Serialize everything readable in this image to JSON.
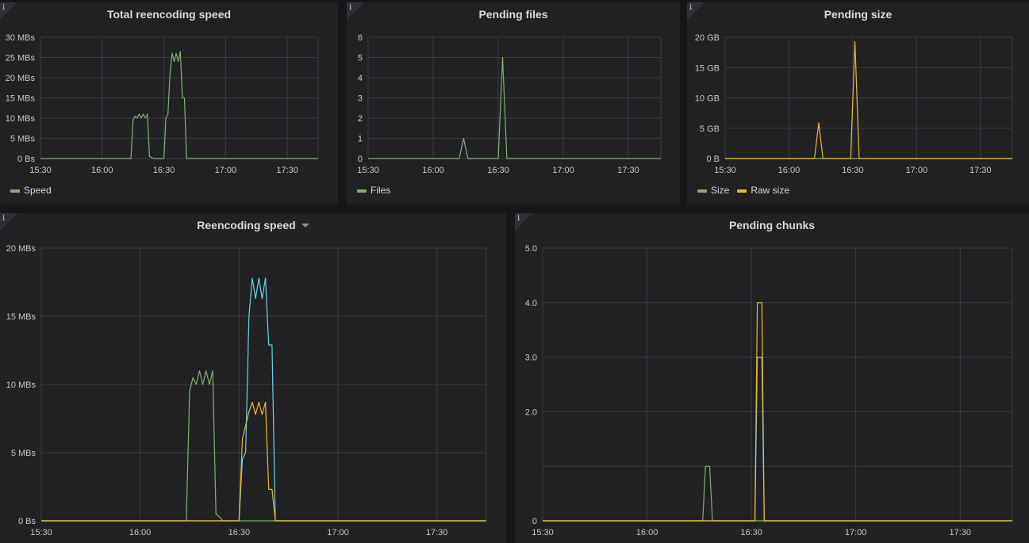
{
  "palette": {
    "green": "#7eb26d",
    "yellow": "#eab839",
    "blue": "#6ed0e0",
    "grid": "#3a3b40",
    "axis": "#c8c9ca"
  },
  "panels": {
    "p1": {
      "title": "Total reencoding speed",
      "info": "i",
      "legend": [
        {
          "name": "Speed",
          "color": "#7eb26d"
        }
      ]
    },
    "p2": {
      "title": "Pending files",
      "info": "i",
      "legend": [
        {
          "name": "Files",
          "color": "#7eb26d"
        }
      ]
    },
    "p3": {
      "title": "Pending size",
      "info": "i",
      "legend": [
        {
          "name": "Size",
          "color": "#7eb26d"
        },
        {
          "name": "Raw size",
          "color": "#eab839"
        }
      ]
    },
    "p4": {
      "title": "Reencoding speed",
      "info": "i",
      "legend": []
    },
    "p5": {
      "title": "Pending chunks",
      "info": "i",
      "legend": []
    }
  },
  "chart_data": [
    {
      "id": "p1",
      "type": "line",
      "title": "Total reencoding speed",
      "xlim": [
        0,
        135
      ],
      "xticks": [
        0,
        30,
        60,
        90,
        120
      ],
      "xtick_labels": [
        "15:30",
        "16:00",
        "16:30",
        "17:00",
        "17:30"
      ],
      "ylim": [
        0,
        30
      ],
      "yticks": [
        0,
        5,
        10,
        15,
        20,
        25,
        30
      ],
      "ytick_labels": [
        "0 Bs",
        "5 MBs",
        "10 MBs",
        "15 MBs",
        "20 MBs",
        "25 MBs",
        "30 MBs"
      ],
      "grid": true,
      "legend": "bottom-left",
      "series": [
        {
          "name": "Speed",
          "color": "#7eb26d",
          "points": [
            [
              0,
              0
            ],
            [
              44,
              0
            ],
            [
              45,
              9.5
            ],
            [
              46,
              10.5
            ],
            [
              47,
              10
            ],
            [
              48,
              11
            ],
            [
              49,
              10
            ],
            [
              50,
              11
            ],
            [
              51,
              10
            ],
            [
              52,
              11
            ],
            [
              53,
              0.5
            ],
            [
              54,
              0.3
            ],
            [
              55,
              0
            ],
            [
              60,
              0
            ],
            [
              61,
              10
            ],
            [
              62,
              11
            ],
            [
              63,
              21
            ],
            [
              64,
              26
            ],
            [
              65,
              24
            ],
            [
              66,
              26
            ],
            [
              67,
              24
            ],
            [
              68,
              26.5
            ],
            [
              69,
              15
            ],
            [
              70,
              15
            ],
            [
              71,
              0
            ],
            [
              135,
              0
            ]
          ]
        }
      ]
    },
    {
      "id": "p2",
      "type": "line",
      "title": "Pending files",
      "xlim": [
        0,
        135
      ],
      "xticks": [
        0,
        30,
        60,
        90,
        120
      ],
      "xtick_labels": [
        "15:30",
        "16:00",
        "16:30",
        "17:00",
        "17:30"
      ],
      "ylim": [
        0,
        6
      ],
      "yticks": [
        0,
        1,
        2,
        3,
        4,
        5,
        6
      ],
      "ytick_labels": [
        "0",
        "1",
        "2",
        "3",
        "4",
        "5",
        "6"
      ],
      "grid": true,
      "legend": "bottom-left",
      "series": [
        {
          "name": "Files",
          "color": "#7eb26d",
          "points": [
            [
              0,
              0
            ],
            [
              42,
              0
            ],
            [
              44,
              1
            ],
            [
              46,
              0
            ],
            [
              60,
              0
            ],
            [
              62,
              5
            ],
            [
              64,
              0
            ],
            [
              135,
              0
            ]
          ]
        }
      ]
    },
    {
      "id": "p3",
      "type": "line",
      "title": "Pending size",
      "xlim": [
        0,
        135
      ],
      "xticks": [
        0,
        30,
        60,
        90,
        120
      ],
      "xtick_labels": [
        "15:30",
        "16:00",
        "16:30",
        "17:00",
        "17:30"
      ],
      "ylim": [
        0,
        20
      ],
      "yticks": [
        0,
        5,
        10,
        15,
        20
      ],
      "ytick_labels": [
        "0 B",
        "5 GB",
        "10 GB",
        "15 GB",
        "20 GB"
      ],
      "grid": true,
      "legend": "bottom-left",
      "series": [
        {
          "name": "Size",
          "color": "#7eb26d",
          "points": [
            [
              0,
              0
            ],
            [
              135,
              0
            ]
          ]
        },
        {
          "name": "Raw size",
          "color": "#eab839",
          "points": [
            [
              0,
              0
            ],
            [
              42,
              0
            ],
            [
              44,
              5.9
            ],
            [
              46,
              0
            ],
            [
              59,
              0
            ],
            [
              61,
              19.3
            ],
            [
              63,
              0
            ],
            [
              135,
              0
            ]
          ]
        }
      ]
    },
    {
      "id": "p4",
      "type": "line",
      "title": "Reencoding speed",
      "xlim": [
        0,
        135
      ],
      "xticks": [
        0,
        30,
        60,
        90,
        120
      ],
      "xtick_labels": [
        "15:30",
        "16:00",
        "16:30",
        "17:00",
        "17:30"
      ],
      "ylim": [
        0,
        20
      ],
      "yticks": [
        0,
        5,
        10,
        15,
        20
      ],
      "ytick_labels": [
        "0 Bs",
        "5 MBs",
        "10 MBs",
        "15 MBs",
        "20 MBs"
      ],
      "grid": true,
      "legend": "none",
      "series": [
        {
          "color": "#7eb26d",
          "points": [
            [
              0,
              0
            ],
            [
              44,
              0
            ],
            [
              45,
              9.5
            ],
            [
              46,
              10.5
            ],
            [
              47,
              10
            ],
            [
              48,
              11
            ],
            [
              49,
              10
            ],
            [
              50,
              11
            ],
            [
              51,
              10
            ],
            [
              52,
              11
            ],
            [
              53,
              0.5
            ],
            [
              54,
              0.3
            ],
            [
              55,
              0
            ],
            [
              135,
              0
            ]
          ]
        },
        {
          "color": "#6ed0e0",
          "points": [
            [
              0,
              0
            ],
            [
              60,
              0
            ],
            [
              61,
              4.5
            ],
            [
              62,
              5
            ],
            [
              63,
              15
            ],
            [
              64,
              17.8
            ],
            [
              65,
              16.3
            ],
            [
              66,
              17.8
            ],
            [
              67,
              16.3
            ],
            [
              68,
              17.8
            ],
            [
              69,
              12.9
            ],
            [
              70,
              12.9
            ],
            [
              71,
              0
            ],
            [
              135,
              0
            ]
          ]
        },
        {
          "color": "#eab839",
          "points": [
            [
              0,
              0
            ],
            [
              60,
              0
            ],
            [
              61,
              6
            ],
            [
              62,
              7
            ],
            [
              63,
              8
            ],
            [
              64,
              8.7
            ],
            [
              65,
              7.8
            ],
            [
              66,
              8.7
            ],
            [
              67,
              7.8
            ],
            [
              68,
              8.7
            ],
            [
              69,
              2.3
            ],
            [
              70,
              2.3
            ],
            [
              71,
              0
            ],
            [
              135,
              0
            ]
          ]
        }
      ]
    },
    {
      "id": "p5",
      "type": "line",
      "title": "Pending chunks",
      "xlim": [
        0,
        135
      ],
      "xticks": [
        0,
        30,
        60,
        90,
        120
      ],
      "xtick_labels": [
        "15:30",
        "16:00",
        "16:30",
        "17:00",
        "17:30"
      ],
      "ylim": [
        0,
        5
      ],
      "yticks": [
        0,
        2,
        3,
        4,
        5
      ],
      "ytick_labels": [
        "0",
        "2.0",
        "3.0",
        "4.0",
        "5.0"
      ],
      "gridlines": [
        0,
        1,
        2,
        3,
        4,
        5
      ],
      "grid": true,
      "legend": "none",
      "series": [
        {
          "color": "#7eb26d",
          "points": [
            [
              0,
              0
            ],
            [
              46,
              0
            ],
            [
              46.8,
              1
            ],
            [
              48,
              1
            ],
            [
              48.8,
              0
            ],
            [
              135,
              0
            ]
          ]
        },
        {
          "color": "#6ed0e0",
          "points": [
            [
              0,
              0
            ],
            [
              61,
              0
            ],
            [
              61.7,
              3
            ],
            [
              63,
              3
            ],
            [
              63.7,
              0
            ],
            [
              135,
              0
            ]
          ]
        },
        {
          "color": "#eab839",
          "points": [
            [
              0,
              0
            ],
            [
              61,
              0
            ],
            [
              61.7,
              4
            ],
            [
              63,
              4
            ],
            [
              63.7,
              0
            ],
            [
              135,
              0
            ]
          ]
        }
      ]
    }
  ]
}
